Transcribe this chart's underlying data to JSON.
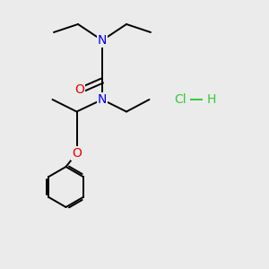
{
  "background_color": "#ebebeb",
  "atom_colors": {
    "N": "#0000ee",
    "O": "#ee0000",
    "C": "#000000",
    "Cl": "#00cc00",
    "H": "#00aa00"
  },
  "hcl_color": "#33cc33",
  "bond_color": "#000000",
  "bond_width": 1.4,
  "figsize": [
    3.0,
    3.0
  ],
  "dpi": 100
}
